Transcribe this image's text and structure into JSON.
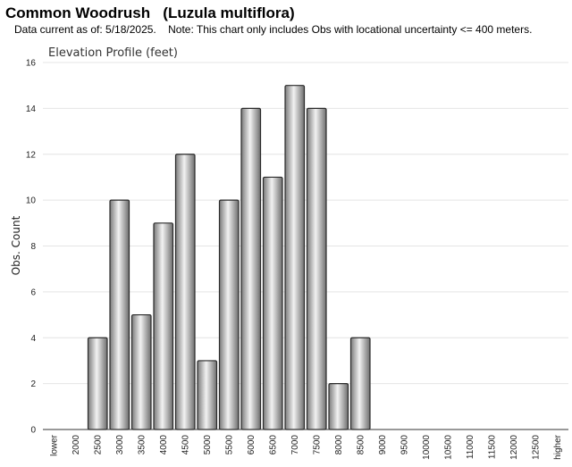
{
  "header": {
    "title": "Common Woodrush   (Luzula multiflora)",
    "subtitle": "Data current as of: 5/18/2025.    Note: This chart only includes Obs with locational uncertainty <= 400 meters."
  },
  "chart_data": {
    "type": "bar",
    "title": "Elevation Profile (feet)",
    "xlabel": "",
    "ylabel": "Obs. Count",
    "ylim": [
      0,
      16
    ],
    "yticks": [
      0,
      2,
      4,
      6,
      8,
      10,
      12,
      14,
      16
    ],
    "grid": true,
    "categories": [
      "lower",
      "2000",
      "2500",
      "3000",
      "3500",
      "4000",
      "4500",
      "5000",
      "5500",
      "6000",
      "6500",
      "7000",
      "7500",
      "8000",
      "8500",
      "9000",
      "9500",
      "10000",
      "10500",
      "11000",
      "11500",
      "12000",
      "12500",
      "higher"
    ],
    "values": [
      0,
      0,
      4,
      10,
      5,
      9,
      12,
      3,
      10,
      14,
      11,
      15,
      14,
      2,
      4,
      0,
      0,
      0,
      0,
      0,
      0,
      0,
      0,
      0
    ],
    "bar_color": "#b8b8b8"
  }
}
